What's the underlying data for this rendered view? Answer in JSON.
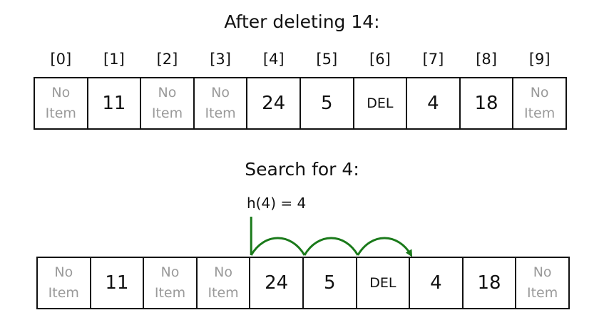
{
  "after_delete": {
    "title": "After deleting 14:",
    "indices": [
      "[0]",
      "[1]",
      "[2]",
      "[3]",
      "[4]",
      "[5]",
      "[6]",
      "[7]",
      "[8]",
      "[9]"
    ],
    "cells": [
      {
        "text": "No\nItem",
        "kind": "empty"
      },
      {
        "text": "11",
        "kind": "value"
      },
      {
        "text": "No\nItem",
        "kind": "empty"
      },
      {
        "text": "No\nItem",
        "kind": "empty"
      },
      {
        "text": "24",
        "kind": "value"
      },
      {
        "text": "5",
        "kind": "value"
      },
      {
        "text": "DEL",
        "kind": "deleted"
      },
      {
        "text": "4",
        "kind": "value"
      },
      {
        "text": "18",
        "kind": "value"
      },
      {
        "text": "No\nItem",
        "kind": "empty"
      }
    ]
  },
  "search": {
    "title": "Search for 4:",
    "hash_label": "h(4) = 4",
    "probe_color": "#1a7a1a",
    "probe_start_index": 4,
    "probe_end_index": 7,
    "cells": [
      {
        "text": "No\nItem",
        "kind": "empty"
      },
      {
        "text": "11",
        "kind": "value"
      },
      {
        "text": "No\nItem",
        "kind": "empty"
      },
      {
        "text": "No\nItem",
        "kind": "empty"
      },
      {
        "text": "24",
        "kind": "value"
      },
      {
        "text": "5",
        "kind": "value"
      },
      {
        "text": "DEL",
        "kind": "deleted"
      },
      {
        "text": "4",
        "kind": "value"
      },
      {
        "text": "18",
        "kind": "value"
      },
      {
        "text": "No\nItem",
        "kind": "empty"
      }
    ]
  }
}
